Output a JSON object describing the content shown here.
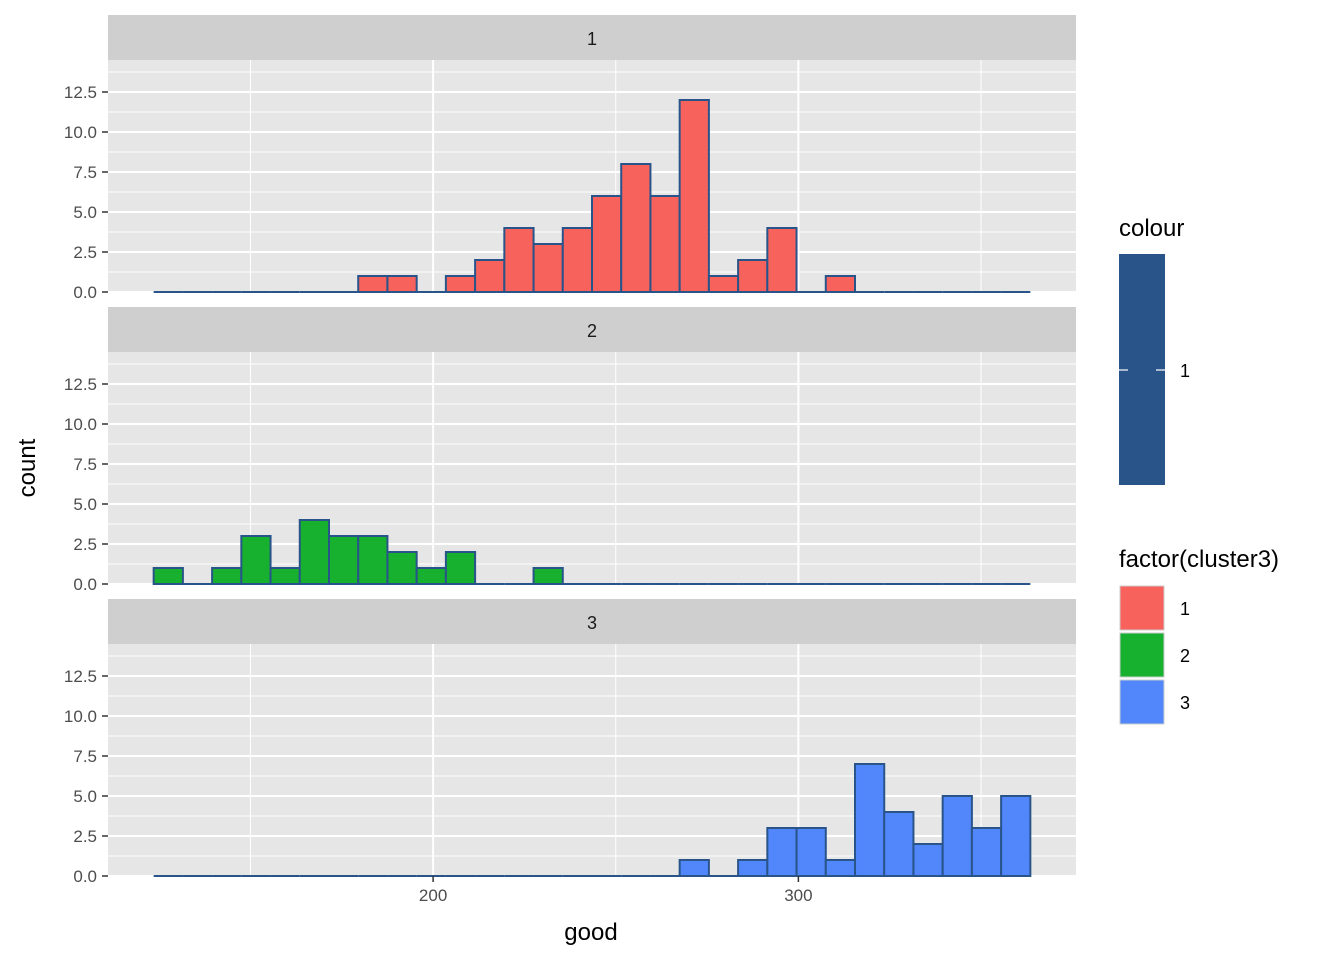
{
  "chart_data": {
    "type": "bar",
    "xlabel": "good",
    "ylabel": "count",
    "xlim": [
      111,
      376
    ],
    "ylim": [
      0,
      14.5
    ],
    "x_major_ticks": [
      200,
      300
    ],
    "x_major_tick_labels": [
      "200",
      "300"
    ],
    "x_minor_ticks": [
      150,
      250,
      350
    ],
    "y_major_ticks": [
      0,
      2.5,
      5,
      7.5,
      10,
      12.5
    ],
    "y_tick_labels": [
      "0.0",
      "2.5",
      "5.0",
      "7.5",
      "10.0",
      "12.5"
    ],
    "y_minor_ticks": [
      1.25,
      3.75,
      6.25,
      8.75,
      11.25,
      13.75
    ],
    "bin_start": 123.5,
    "bin_width": 8,
    "bin_outline_color": "#29548a",
    "panel_background": "#e6e6e6",
    "strip_background": "#cfcfcf",
    "grid": true,
    "facets": [
      {
        "strip_label": "1",
        "fill": "#f8625d",
        "counts": [
          0,
          0,
          0,
          0,
          0,
          0,
          0,
          1,
          1,
          0,
          1,
          2,
          4,
          3,
          4,
          6,
          8,
          6,
          12,
          1,
          2,
          4,
          0,
          1,
          0,
          0,
          0,
          0,
          0,
          0
        ]
      },
      {
        "strip_label": "2",
        "fill": "#17b12f",
        "counts": [
          1,
          0,
          1,
          3,
          1,
          4,
          3,
          3,
          2,
          1,
          2,
          0,
          0,
          1,
          0,
          0,
          0,
          0,
          0,
          0,
          0,
          0,
          0,
          0,
          0,
          0,
          0,
          0,
          0,
          0
        ]
      },
      {
        "strip_label": "3",
        "fill": "#5187fb",
        "counts": [
          0,
          0,
          0,
          0,
          0,
          0,
          0,
          0,
          0,
          0,
          0,
          0,
          0,
          0,
          0,
          0,
          0,
          0,
          1,
          0,
          1,
          3,
          3,
          1,
          7,
          4,
          2,
          5,
          3,
          5
        ]
      }
    ],
    "legends": {
      "colour": {
        "title": "colour",
        "color": "#29548a",
        "label": "1"
      },
      "fill": {
        "title": "factor(cluster3)",
        "items": [
          {
            "label": "1",
            "color": "#f8625d"
          },
          {
            "label": "2",
            "color": "#17b12f"
          },
          {
            "label": "3",
            "color": "#5187fb"
          }
        ]
      }
    }
  }
}
